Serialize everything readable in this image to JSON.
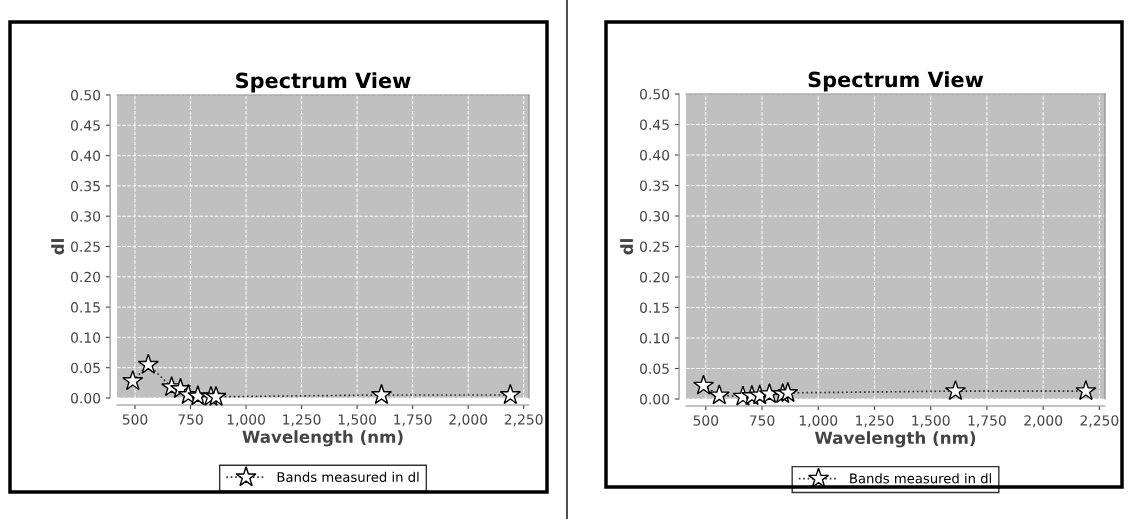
{
  "chart_data": [
    {
      "type": "line",
      "title": "Spectrum View",
      "xlabel": "Wavelength (nm)",
      "ylabel": "dl",
      "x": [
        490,
        560,
        665,
        705,
        740,
        783,
        842,
        865,
        1610,
        2190
      ],
      "series": [
        {
          "name": "Bands measured in dl",
          "color": "#303030",
          "values": [
            0.028,
            0.055,
            0.018,
            0.015,
            0.005,
            0.003,
            0.002,
            0.002,
            0.005,
            0.005
          ]
        }
      ],
      "xlim": [
        419,
        2274
      ],
      "ylim": [
        0,
        0.5
      ],
      "xticks": [
        500,
        750,
        {
          "value": 1000,
          "label": "1,000"
        },
        {
          "value": 1250,
          "label": "1,250"
        },
        {
          "value": 1500,
          "label": "1,500"
        },
        {
          "value": 1750,
          "label": "1,750"
        },
        {
          "value": 2000,
          "label": "2,000"
        },
        {
          "value": 2250,
          "label": "2,250"
        }
      ],
      "yticks": [
        {
          "value": 0,
          "label": "0.00"
        },
        0.05,
        {
          "value": 0.1,
          "label": "0.10"
        },
        0.15,
        {
          "value": 0.2,
          "label": "0.20"
        },
        0.25,
        {
          "value": 0.3,
          "label": "0.30"
        },
        0.35,
        {
          "value": 0.4,
          "label": "0.40"
        },
        0.45,
        {
          "value": 0.5,
          "label": "0.50"
        }
      ],
      "grid": true,
      "legend": "bottom",
      "marker": "star",
      "line_style": "dotted"
    },
    {
      "type": "line",
      "title": "Spectrum View",
      "xlabel": "Wavelength (nm)",
      "ylabel": "dl",
      "x": [
        490,
        560,
        665,
        705,
        740,
        783,
        842,
        865,
        1610,
        2190
      ],
      "series": [
        {
          "name": "Bands measured in dl",
          "color": "#303030",
          "values": [
            0.022,
            0.006,
            0.004,
            0.005,
            0.006,
            0.008,
            0.008,
            0.01,
            0.013,
            0.013
          ]
        }
      ],
      "xlim": [
        412,
        2275
      ],
      "ylim": [
        0,
        0.5
      ],
      "xticks": [
        500,
        750,
        {
          "value": 1000,
          "label": "1,000"
        },
        {
          "value": 1250,
          "label": "1,250"
        },
        {
          "value": 1500,
          "label": "1,500"
        },
        {
          "value": 1750,
          "label": "1,750"
        },
        {
          "value": 2000,
          "label": "2,000"
        },
        {
          "value": 2250,
          "label": "2,250"
        }
      ],
      "yticks": [
        {
          "value": 0,
          "label": "0.00"
        },
        0.05,
        {
          "value": 0.1,
          "label": "0.10"
        },
        0.15,
        {
          "value": 0.2,
          "label": "0.20"
        },
        0.25,
        {
          "value": 0.3,
          "label": "0.30"
        },
        0.35,
        {
          "value": 0.4,
          "label": "0.40"
        },
        0.45,
        {
          "value": 0.5,
          "label": "0.50"
        }
      ],
      "grid": true,
      "legend": "bottom",
      "marker": "star",
      "line_style": "dotted"
    }
  ]
}
